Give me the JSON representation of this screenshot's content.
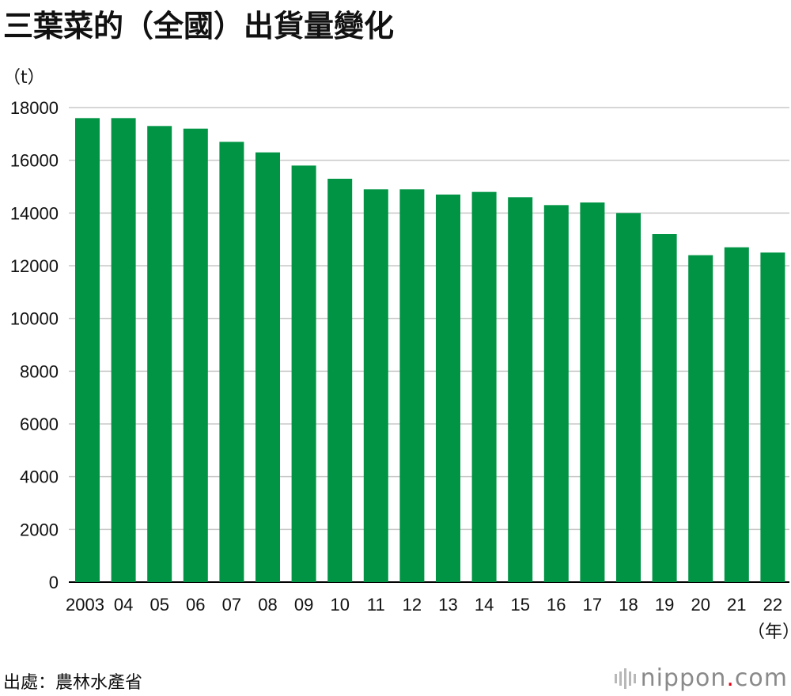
{
  "title": "三葉菜的（全國）出貨量變化",
  "unit_label": "（t）",
  "year_unit_label": "（年）",
  "source": "出處：農林水產省",
  "logo": {
    "name": "nippon",
    "dot": ".",
    "suffix": "com"
  },
  "colors": {
    "bar": "#009444",
    "grid": "#c8c8c8",
    "axis": "#000000"
  },
  "chart_data": {
    "type": "bar",
    "title": "三葉菜的（全國）出貨量變化",
    "xlabel": "（年）",
    "ylabel": "（t）",
    "categories": [
      "2003",
      "04",
      "05",
      "06",
      "07",
      "08",
      "09",
      "10",
      "11",
      "12",
      "13",
      "14",
      "15",
      "16",
      "17",
      "18",
      "19",
      "20",
      "21",
      "22"
    ],
    "values": [
      17600,
      17600,
      17300,
      17200,
      16700,
      16300,
      15800,
      15300,
      14900,
      14900,
      14700,
      14800,
      14600,
      14300,
      14400,
      14000,
      13200,
      12400,
      12700,
      12500
    ],
    "ylim": [
      0,
      18000
    ],
    "yticks": [
      0,
      2000,
      4000,
      6000,
      8000,
      10000,
      12000,
      14000,
      16000,
      18000
    ],
    "grid": true,
    "legend": "none"
  }
}
